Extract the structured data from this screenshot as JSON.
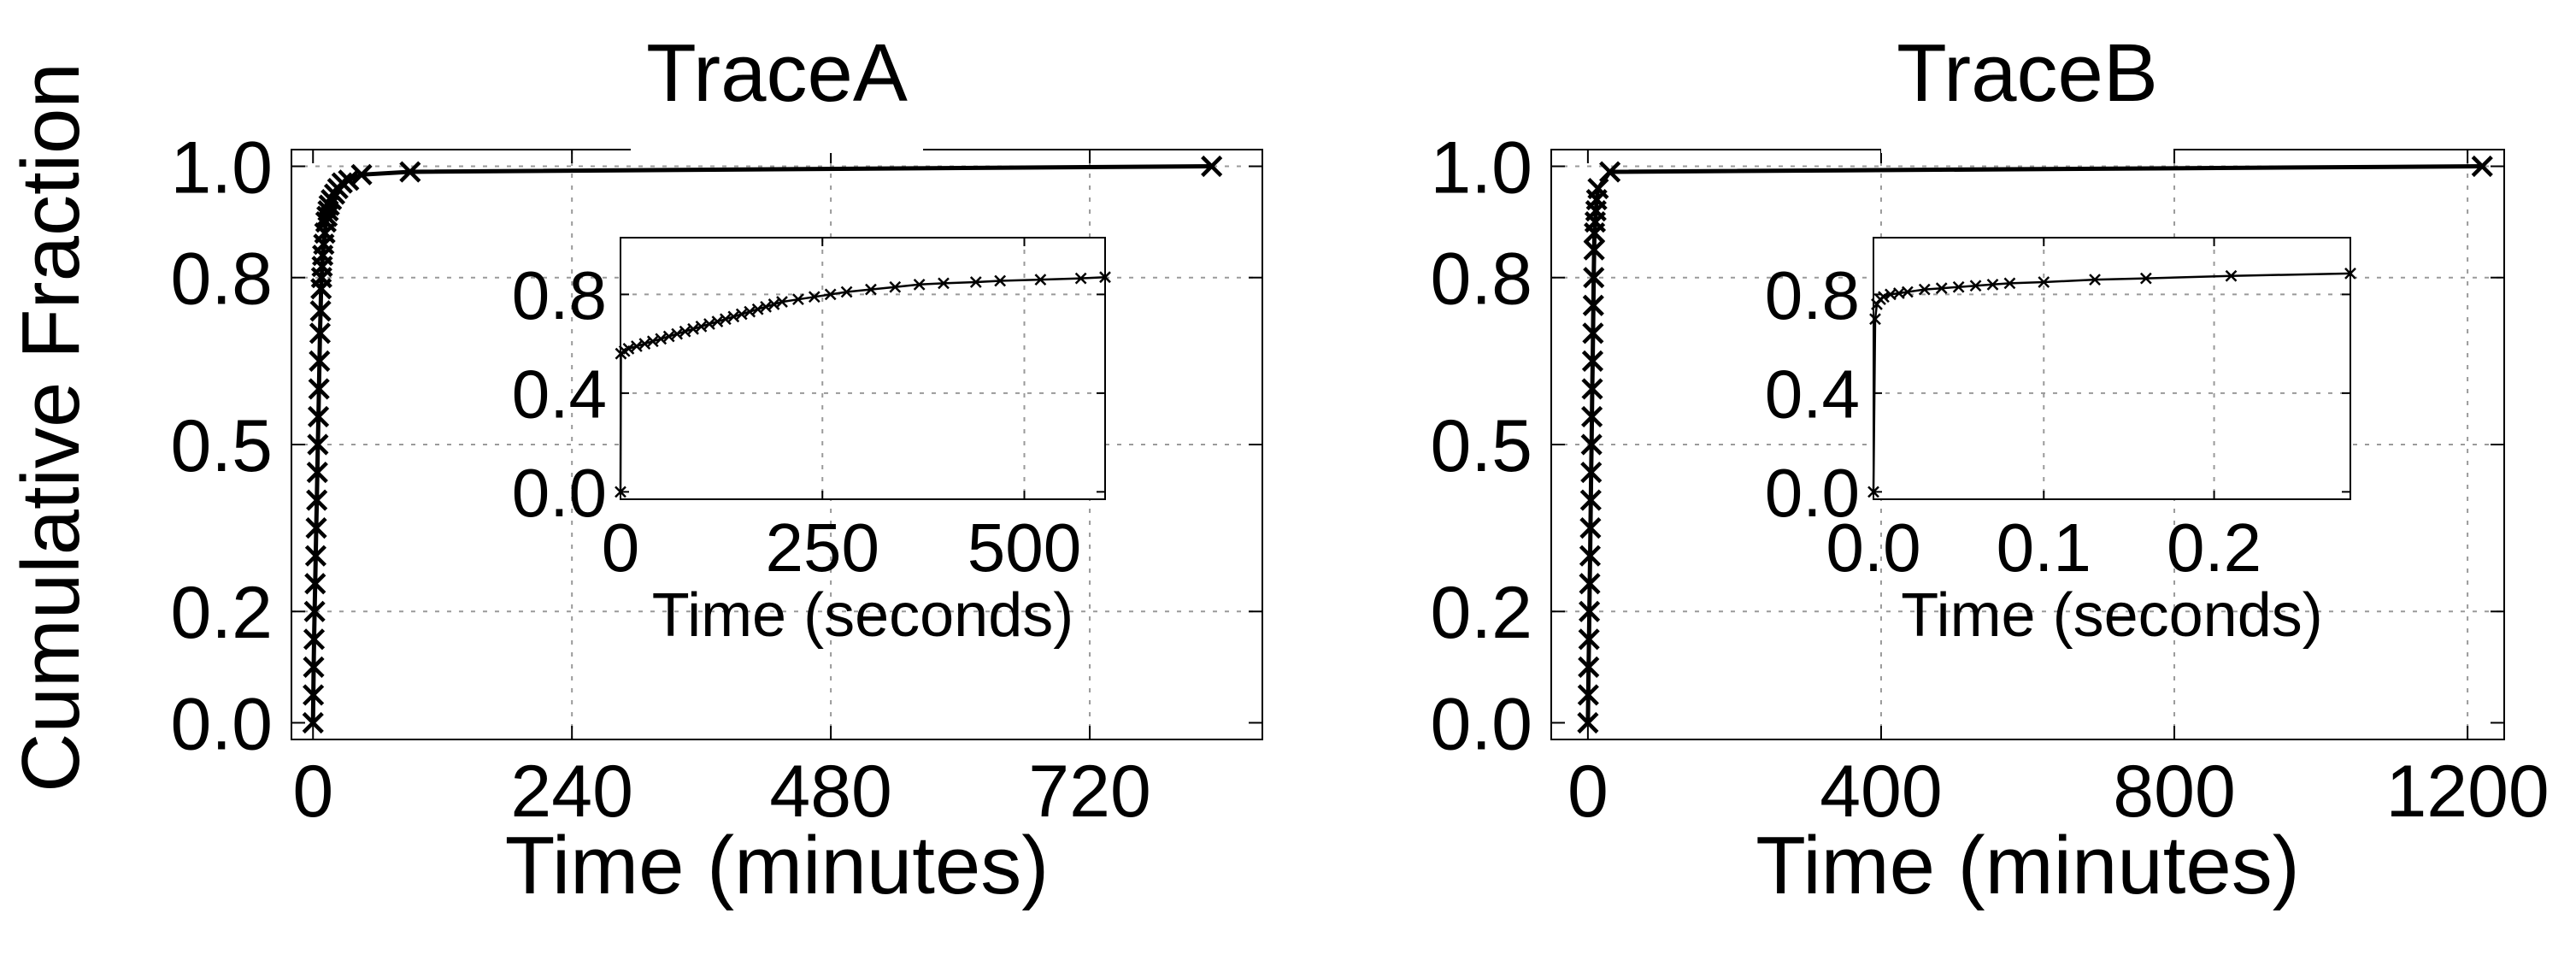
{
  "figure": {
    "shared_ylabel": "Cumulative Fraction"
  },
  "chart_data": [
    {
      "type": "line",
      "title": "TraceA",
      "xlabel": "Time (minutes)",
      "ylabel": "Cumulative Fraction",
      "xlim": [
        -20,
        880
      ],
      "ylim": [
        -0.03,
        1.03
      ],
      "xticks": [
        0,
        240,
        480,
        720
      ],
      "xtick_labels": [
        "0",
        "240",
        "480",
        "720"
      ],
      "yticks": [
        0.0,
        0.2,
        0.5,
        0.8,
        1.0
      ],
      "ytick_labels": [
        "0.0",
        "0.2",
        "0.5",
        "0.8",
        "1.0"
      ],
      "grid": true,
      "marker": "x",
      "series": [
        {
          "x": [
            0,
            0.3,
            0.6,
            1,
            1.5,
            2,
            2.5,
            3,
            3.5,
            4,
            4.5,
            5,
            5.5,
            6,
            6.5,
            7,
            7.5,
            8,
            8.5,
            9,
            10,
            11,
            12,
            13,
            14,
            15,
            17,
            20,
            23,
            27,
            33,
            45,
            90,
            833
          ],
          "y": [
            0.0,
            0.05,
            0.1,
            0.15,
            0.2,
            0.25,
            0.3,
            0.35,
            0.4,
            0.45,
            0.5,
            0.55,
            0.6,
            0.65,
            0.7,
            0.74,
            0.78,
            0.8,
            0.82,
            0.84,
            0.86,
            0.88,
            0.9,
            0.91,
            0.92,
            0.93,
            0.94,
            0.95,
            0.96,
            0.97,
            0.975,
            0.985,
            0.99,
            1.0
          ]
        }
      ],
      "inset": {
        "type": "line",
        "xlabel": "Time (seconds)",
        "xlim": [
          0,
          600
        ],
        "ylim": [
          -0.03,
          1.03
        ],
        "xticks": [
          0,
          250,
          500
        ],
        "xtick_labels": [
          "0",
          "250",
          "500"
        ],
        "yticks": [
          0.0,
          0.4,
          0.8
        ],
        "ytick_labels": [
          "0.0",
          "0.4",
          "0.8"
        ],
        "grid": true,
        "marker": "x",
        "series": [
          {
            "x": [
              0,
              0.5,
              5,
              10,
              20,
              30,
              40,
              50,
              60,
              70,
              80,
              90,
              100,
              110,
              120,
              130,
              140,
              150,
              160,
              170,
              180,
              190,
              200,
              220,
              240,
              260,
              280,
              310,
              340,
              370,
              400,
              440,
              470,
              520,
              570,
              600
            ],
            "y": [
              0.0,
              0.56,
              0.57,
              0.58,
              0.59,
              0.6,
              0.61,
              0.62,
              0.63,
              0.64,
              0.65,
              0.66,
              0.67,
              0.68,
              0.69,
              0.7,
              0.71,
              0.72,
              0.73,
              0.74,
              0.75,
              0.76,
              0.77,
              0.78,
              0.79,
              0.8,
              0.81,
              0.82,
              0.83,
              0.84,
              0.845,
              0.85,
              0.855,
              0.86,
              0.865,
              0.87
            ]
          }
        ]
      }
    },
    {
      "type": "line",
      "title": "TraceB",
      "xlabel": "Time (minutes)",
      "ylabel": "Cumulative Fraction",
      "xlim": [
        -50,
        1250
      ],
      "ylim": [
        -0.03,
        1.03
      ],
      "xticks": [
        0,
        400,
        800,
        1200
      ],
      "xtick_labels": [
        "0",
        "400",
        "800",
        "1200"
      ],
      "yticks": [
        0.0,
        0.2,
        0.5,
        0.8,
        1.0
      ],
      "ytick_labels": [
        "0.0",
        "0.2",
        "0.5",
        "0.8",
        "1.0"
      ],
      "grid": true,
      "marker": "x",
      "series": [
        {
          "x": [
            0,
            0.5,
            1,
            1.5,
            2,
            2.5,
            3,
            3.5,
            4,
            4.5,
            5,
            5.5,
            6,
            6.5,
            7,
            7.5,
            8,
            8.5,
            9,
            10,
            11,
            12,
            14,
            30,
            1220
          ],
          "y": [
            0.0,
            0.05,
            0.1,
            0.15,
            0.2,
            0.25,
            0.3,
            0.35,
            0.4,
            0.45,
            0.5,
            0.55,
            0.6,
            0.65,
            0.7,
            0.75,
            0.8,
            0.85,
            0.88,
            0.9,
            0.92,
            0.94,
            0.96,
            0.99,
            1.0
          ]
        }
      ],
      "inset": {
        "type": "line",
        "xlabel": "Time (seconds)",
        "xlim": [
          0,
          0.28
        ],
        "ylim": [
          -0.03,
          1.03
        ],
        "xticks": [
          0.0,
          0.1,
          0.2
        ],
        "xtick_labels": [
          "0.0",
          "0.1",
          "0.2"
        ],
        "yticks": [
          0.0,
          0.4,
          0.8
        ],
        "ytick_labels": [
          "0.0",
          "0.4",
          "0.8"
        ],
        "grid": true,
        "marker": "x",
        "series": [
          {
            "x": [
              0,
              0.001,
              0.002,
              0.004,
              0.006,
              0.01,
              0.015,
              0.02,
              0.03,
              0.04,
              0.05,
              0.06,
              0.07,
              0.08,
              0.1,
              0.13,
              0.16,
              0.21,
              0.28
            ],
            "y": [
              0.0,
              0.7,
              0.76,
              0.78,
              0.79,
              0.8,
              0.805,
              0.81,
              0.82,
              0.825,
              0.83,
              0.835,
              0.84,
              0.845,
              0.85,
              0.86,
              0.865,
              0.875,
              0.885
            ]
          }
        ]
      }
    }
  ]
}
